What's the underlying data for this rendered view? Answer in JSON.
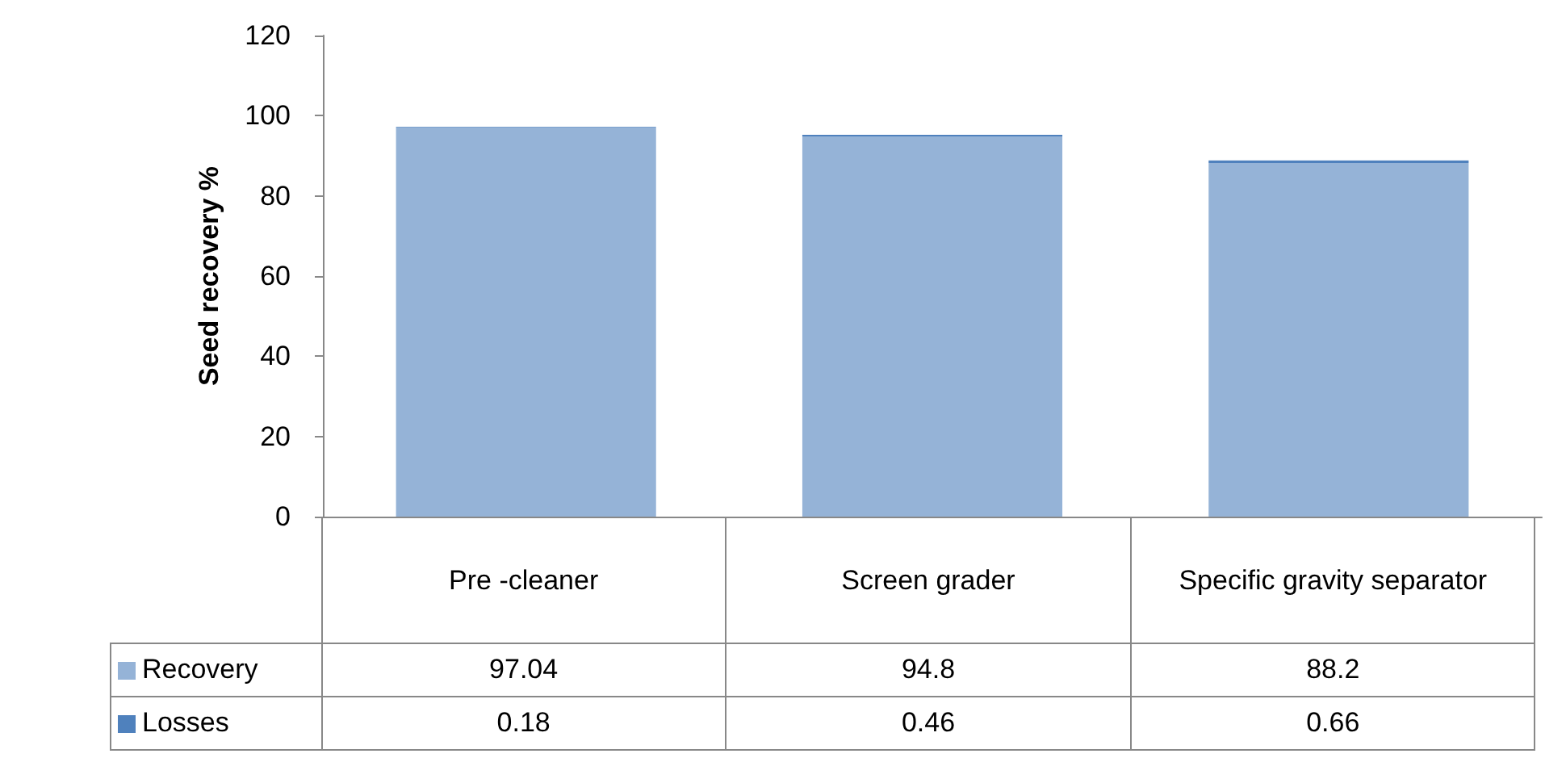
{
  "chart_data": {
    "type": "bar",
    "ylabel": "Seed recovery %",
    "categories": [
      "Pre -cleaner",
      "Screen grader",
      "Specific gravity separator"
    ],
    "series": [
      {
        "name": "Recovery",
        "color": "#95b3d7",
        "values": [
          97.04,
          94.8,
          88.2
        ]
      },
      {
        "name": "Losses",
        "color": "#4f81bd",
        "values": [
          0.18,
          0.46,
          0.66
        ]
      }
    ],
    "stacked": true,
    "ylim": [
      0,
      120
    ],
    "yticks": [
      0,
      20,
      40,
      60,
      80,
      100,
      120
    ],
    "grid": false,
    "legend": "bottom",
    "data_labels": true
  }
}
